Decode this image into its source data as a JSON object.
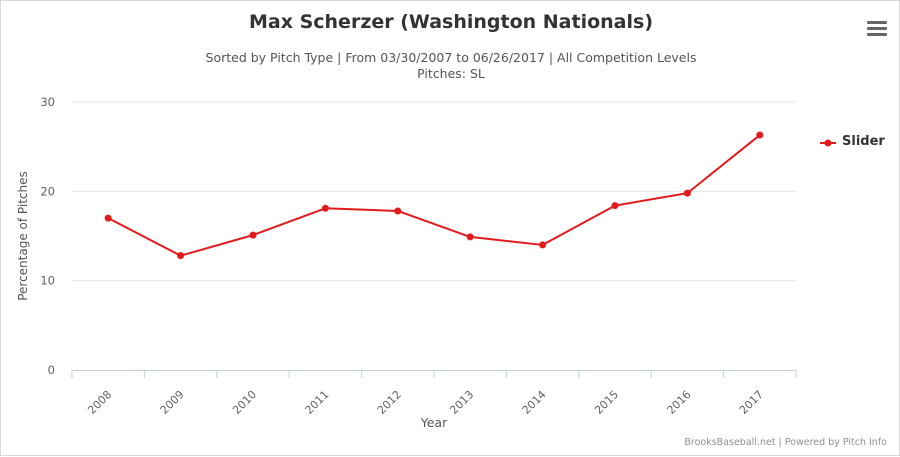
{
  "chart_data": {
    "type": "line",
    "title": "Max Scherzer (Washington Nationals)",
    "subtitle_line1": "Sorted by Pitch Type | From 03/30/2007 to 06/26/2017 | All Competition Levels",
    "subtitle_line2": "Pitches: SL",
    "xlabel": "Year",
    "ylabel": "Percentage of Pitches",
    "categories": [
      "2008",
      "2009",
      "2010",
      "2011",
      "2012",
      "2013",
      "2014",
      "2015",
      "2016",
      "2017"
    ],
    "y_ticks": [
      "0",
      "10",
      "20",
      "30"
    ],
    "ylim": [
      0,
      30
    ],
    "grid": true,
    "legend_position": "right",
    "series": [
      {
        "name": "Slider",
        "color": "#e31a1c",
        "values": [
          17.0,
          12.8,
          15.1,
          18.1,
          17.8,
          14.9,
          14.0,
          18.4,
          19.8,
          26.3
        ]
      }
    ]
  },
  "credits": "BrooksBaseball.net | Powered by Pitch Info",
  "menu_icon": "hamburger-menu-icon"
}
